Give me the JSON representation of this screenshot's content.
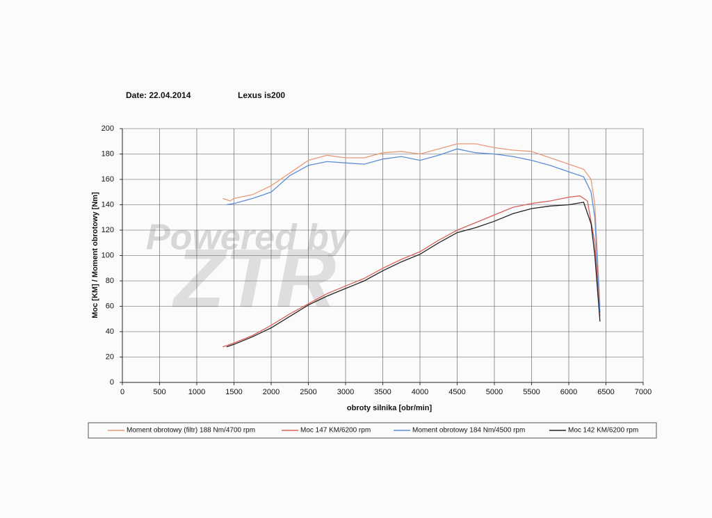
{
  "chart_data": {
    "type": "line",
    "header": {
      "date": "Date: 22.04.2014",
      "model": "Lexus is200"
    },
    "watermark": {
      "line1": "Powered by",
      "line2": "ZTR"
    },
    "xlabel": "obroty silnika [obr/min]",
    "ylabel": "Moc [KM] / Moment obrotowy [Nm]",
    "xlim": [
      0,
      7000
    ],
    "xticks": [
      0,
      500,
      1000,
      1500,
      2000,
      2500,
      3000,
      3500,
      4000,
      4500,
      5000,
      5500,
      6000,
      6500,
      7000
    ],
    "ylim": [
      0,
      200
    ],
    "yticks": [
      0,
      20,
      40,
      60,
      80,
      100,
      120,
      140,
      160,
      180,
      200
    ],
    "grid": true,
    "series": [
      {
        "name": "Moment obrotowy (filtr) 188 Nm/4700 rpm",
        "color": "#e79a78",
        "x": [
          1350,
          1450,
          1500,
          1750,
          2000,
          2250,
          2500,
          2750,
          3000,
          3250,
          3500,
          3750,
          4000,
          4250,
          4500,
          4750,
          5000,
          5250,
          5500,
          5750,
          6000,
          6200,
          6300,
          6350,
          6420
        ],
        "values": [
          145,
          143,
          145,
          148,
          155,
          165,
          175,
          179,
          177,
          177,
          181,
          182,
          180,
          184,
          188,
          188,
          185,
          183,
          182,
          177,
          172,
          168,
          160,
          140,
          60
        ]
      },
      {
        "name": "Moc 147 KM/6200 rpm",
        "color": "#d9605a",
        "x": [
          1350,
          1500,
          1750,
          2000,
          2250,
          2500,
          2750,
          3000,
          3250,
          3500,
          3750,
          4000,
          4250,
          4500,
          4750,
          5000,
          5250,
          5500,
          5750,
          6000,
          6150,
          6250,
          6350,
          6420
        ],
        "values": [
          28,
          31,
          37,
          45,
          54,
          62,
          70,
          76,
          82,
          90,
          97,
          103,
          112,
          120,
          126,
          132,
          138,
          141,
          143,
          146,
          147,
          143,
          110,
          52
        ]
      },
      {
        "name": "Moment obrotowy 184 Nm/4500 rpm",
        "color": "#5b8dd6",
        "x": [
          1400,
          1500,
          1750,
          2000,
          2250,
          2500,
          2750,
          3000,
          3250,
          3500,
          3750,
          4000,
          4250,
          4500,
          4750,
          5000,
          5250,
          5500,
          5750,
          6000,
          6200,
          6300,
          6350,
          6420
        ],
        "values": [
          140,
          141,
          145,
          150,
          163,
          171,
          174,
          173,
          172,
          176,
          178,
          175,
          179,
          184,
          181,
          180,
          178,
          175,
          171,
          166,
          162,
          150,
          130,
          55
        ]
      },
      {
        "name": "Moc 142 KM/6200 rpm",
        "color": "#222222",
        "x": [
          1400,
          1500,
          1750,
          2000,
          2250,
          2500,
          2750,
          3000,
          3250,
          3500,
          3750,
          4000,
          4250,
          4500,
          4750,
          5000,
          5250,
          5500,
          5750,
          6000,
          6200,
          6300,
          6350,
          6420
        ],
        "values": [
          28,
          30,
          36,
          43,
          52,
          61,
          68,
          74,
          80,
          88,
          95,
          101,
          110,
          118,
          122,
          127,
          133,
          137,
          139,
          140,
          142,
          125,
          100,
          48
        ]
      }
    ]
  }
}
